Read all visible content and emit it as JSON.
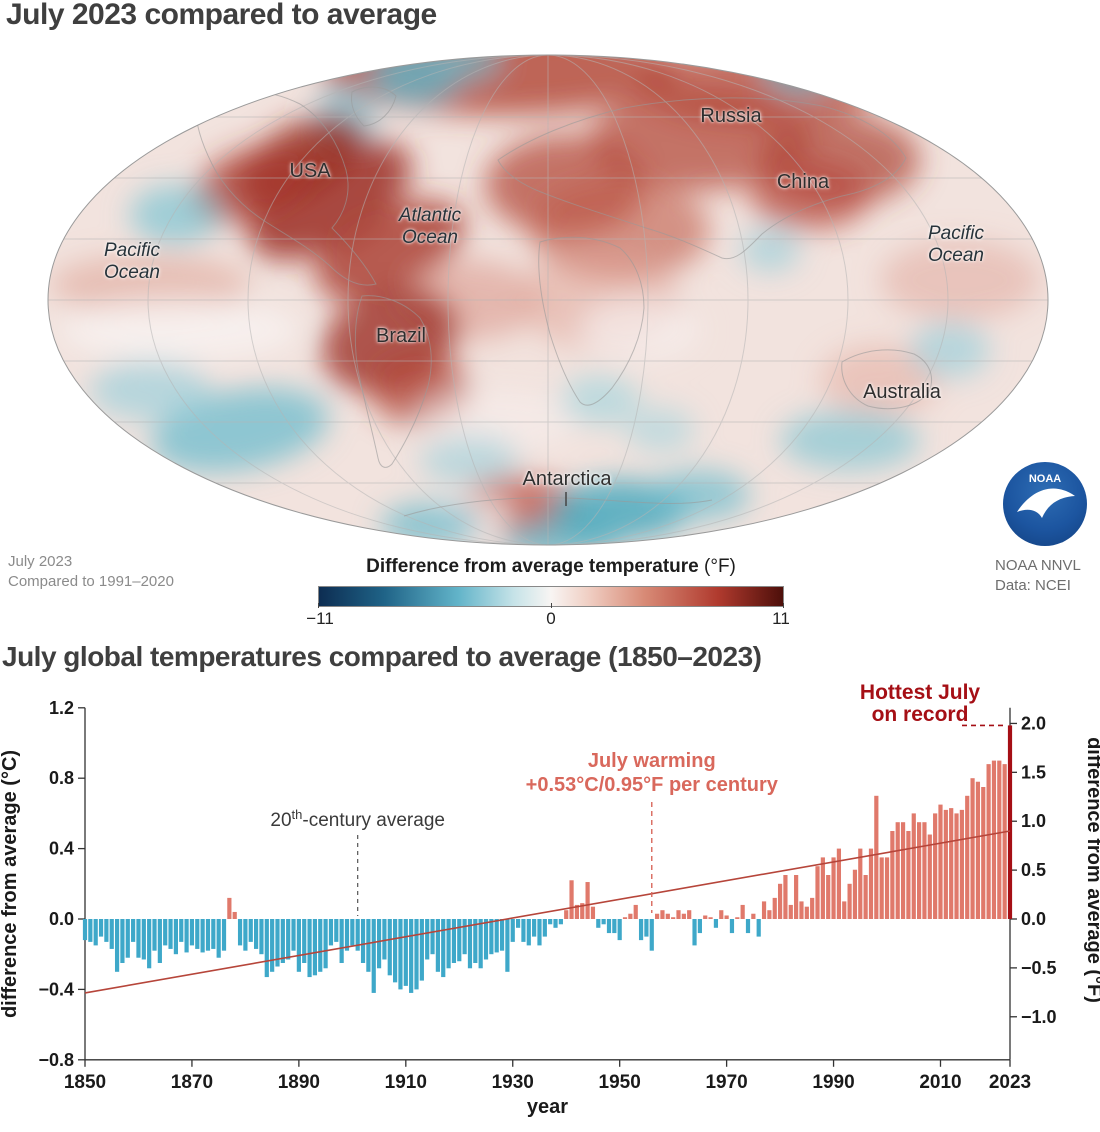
{
  "map_section": {
    "title": "July 2023 compared to average",
    "labels": {
      "russia": "Russia",
      "usa": "USA",
      "china": "China",
      "atlantic": "Atlantic\nOcean",
      "pacific_left": "Pacific\nOcean",
      "pacific_right": "Pacific\nOcean",
      "brazil": "Brazil",
      "australia": "Australia",
      "antarctica": "Antarctica"
    },
    "caption_line1": "July 2023",
    "caption_line2": "Compared to 1991–2020",
    "colorbar": {
      "title": "Difference from average temperature",
      "unit": " (°F)",
      "ticks": [
        "−11",
        "0",
        "11"
      ]
    },
    "logo_text": "NOAA",
    "credit_line1": "NOAA NNVL",
    "credit_line2": "Data: NCEI"
  },
  "chart_data": {
    "type": "bar",
    "title": "July global temperatures compared to average (1850–2023)",
    "xlabel": "year",
    "ylabel_left": "difference from average (°C)",
    "ylabel_right": "difference from average (°F)",
    "x_start": 1850,
    "x_end": 2023,
    "x_ticks": [
      1850,
      1870,
      1890,
      1910,
      1930,
      1950,
      1970,
      1990,
      2010,
      2023
    ],
    "ylim_c": [
      -0.8,
      1.2
    ],
    "yticks_c": [
      1.2,
      0.8,
      0.4,
      0.0,
      -0.4,
      -0.8
    ],
    "yticks_f": [
      2.0,
      1.5,
      1.0,
      0.5,
      0.0,
      -0.5,
      -1.0
    ],
    "values_c": [
      -0.12,
      -0.13,
      -0.15,
      -0.1,
      -0.13,
      -0.17,
      -0.3,
      -0.25,
      -0.22,
      -0.13,
      -0.22,
      -0.23,
      -0.28,
      -0.18,
      -0.25,
      -0.15,
      -0.17,
      -0.2,
      -0.13,
      -0.19,
      -0.15,
      -0.17,
      -0.19,
      -0.18,
      -0.17,
      -0.22,
      -0.18,
      0.12,
      0.04,
      -0.15,
      -0.18,
      -0.13,
      -0.17,
      -0.2,
      -0.33,
      -0.3,
      -0.27,
      -0.25,
      -0.23,
      -0.18,
      -0.3,
      -0.25,
      -0.33,
      -0.32,
      -0.3,
      -0.28,
      -0.15,
      -0.13,
      -0.25,
      -0.18,
      -0.15,
      -0.18,
      -0.25,
      -0.3,
      -0.42,
      -0.28,
      -0.23,
      -0.32,
      -0.36,
      -0.4,
      -0.38,
      -0.42,
      -0.4,
      -0.35,
      -0.23,
      -0.2,
      -0.3,
      -0.33,
      -0.28,
      -0.25,
      -0.24,
      -0.2,
      -0.28,
      -0.25,
      -0.28,
      -0.23,
      -0.2,
      -0.19,
      -0.18,
      -0.3,
      -0.13,
      -0.05,
      -0.13,
      -0.15,
      -0.1,
      -0.15,
      -0.1,
      -0.03,
      -0.05,
      -0.03,
      0.05,
      0.22,
      0.08,
      0.09,
      0.21,
      0.07,
      -0.05,
      -0.03,
      -0.08,
      -0.08,
      -0.12,
      0.01,
      0.03,
      0.08,
      -0.12,
      -0.1,
      -0.18,
      0.03,
      0.05,
      0.03,
      0.01,
      0.05,
      0.03,
      0.05,
      -0.15,
      -0.08,
      0.02,
      0.01,
      -0.05,
      0.05,
      0.02,
      -0.08,
      0.01,
      0.08,
      -0.08,
      0.03,
      -0.1,
      0.1,
      0.05,
      0.12,
      0.2,
      0.25,
      0.08,
      0.25,
      0.1,
      0.07,
      0.12,
      0.3,
      0.35,
      0.25,
      0.35,
      0.4,
      0.1,
      0.2,
      0.28,
      0.4,
      0.25,
      0.4,
      0.7,
      0.35,
      0.35,
      0.5,
      0.55,
      0.55,
      0.5,
      0.6,
      0.55,
      0.55,
      0.48,
      0.6,
      0.65,
      0.62,
      0.63,
      0.6,
      0.62,
      0.7,
      0.8,
      0.78,
      0.75,
      0.88,
      0.9,
      0.9,
      0.88,
      1.1
    ],
    "trend": {
      "start_year": 1850,
      "start_c": -0.42,
      "end_year": 2023,
      "end_c": 0.5
    },
    "annotations": {
      "avg_pre": "20",
      "avg_sup": "th",
      "avg_post": "-century average",
      "warming_line1": "July warming",
      "warming_line2": "+0.53°C/0.95°F per century",
      "hottest_line1": "Hottest July",
      "hottest_line2": "on record"
    },
    "colors": {
      "positive": "#e0796b",
      "negative": "#3ea8c9",
      "record": "#a50f15",
      "trend": "#b6453a",
      "warming_text": "#d9685c",
      "record_text": "#a50f15",
      "avg_text": "#3a3a3a"
    },
    "legend_position": "none",
    "grid": false
  }
}
